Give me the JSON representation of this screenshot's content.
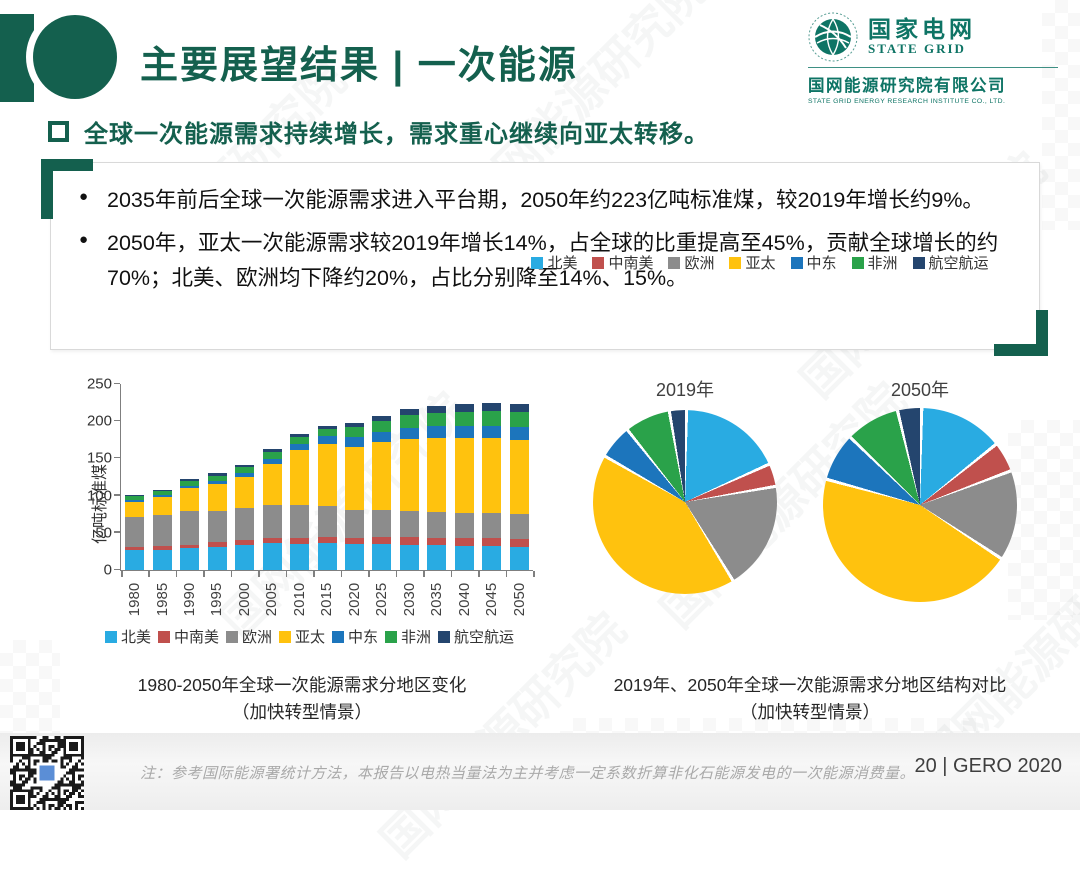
{
  "header": {
    "title": "主要展望结果 | 一次能源",
    "logo": {
      "org_cn": "国家电网",
      "org_en": "STATE GRID",
      "institute_cn": "国网能源研究院有限公司",
      "institute_en": "STATE GRID ENERGY RESEARCH INSTITUTE CO., LTD."
    }
  },
  "headline": "全球一次能源需求持续增长，需求重心继续向亚太转移。",
  "card": {
    "bullets": [
      "2035年前后全球一次能源需求进入平台期，2050年约223亿吨标准煤，较2019年增长约9%。",
      "2050年，亚太一次能源需求较2019年增长14%，占全球的比重提高至45%，贡献全球增长的约70%；北美、欧洲均下降约20%，占比分别降至14%、15%。"
    ]
  },
  "chart_data": [
    {
      "type": "bar",
      "stacked": true,
      "title": "1980-2050年全球一次能源需求分地区变化",
      "subtitle": "（加快转型情景）",
      "ylabel": "亿吨标准煤",
      "ylim": [
        0,
        250
      ],
      "yticks": [
        0,
        50,
        100,
        150,
        200,
        250
      ],
      "grid": false,
      "legend_position": "bottom",
      "categories": [
        "1980",
        "1985",
        "1990",
        "1995",
        "2000",
        "2005",
        "2010",
        "2015",
        "2020",
        "2025",
        "2030",
        "2035",
        "2040",
        "2045",
        "2050"
      ],
      "series": [
        {
          "name": "北美",
          "color": "#29ABE2",
          "values": [
            27,
            27,
            29,
            31,
            34,
            36,
            35,
            36,
            35,
            35,
            34,
            33,
            32,
            32,
            31
          ]
        },
        {
          "name": "中南美",
          "color": "#C0504D",
          "values": [
            4,
            5,
            5,
            6,
            7,
            7,
            8,
            8,
            8,
            9,
            10,
            10,
            11,
            11,
            11
          ]
        },
        {
          "name": "欧洲",
          "color": "#8C8C8C",
          "values": [
            40,
            42,
            45,
            42,
            42,
            44,
            44,
            42,
            38,
            37,
            36,
            35,
            34,
            33,
            33
          ]
        },
        {
          "name": "亚太",
          "color": "#FFC20E",
          "values": [
            21,
            24,
            31,
            37,
            42,
            56,
            74,
            84,
            85,
            91,
            96,
            99,
            100,
            101,
            100
          ]
        },
        {
          "name": "中东",
          "color": "#1C75BC",
          "values": [
            2,
            3,
            3,
            4,
            5,
            6,
            8,
            10,
            13,
            14,
            15,
            16,
            17,
            17,
            17
          ]
        },
        {
          "name": "非洲",
          "color": "#2AA24A",
          "values": [
            5,
            5,
            7,
            7,
            8,
            10,
            10,
            10,
            13,
            15,
            17,
            18,
            19,
            20,
            21
          ]
        },
        {
          "name": "航空航运",
          "color": "#24456E",
          "values": [
            2,
            2,
            3,
            3,
            3,
            4,
            4,
            4,
            5,
            6,
            8,
            9,
            10,
            10,
            10
          ]
        }
      ]
    },
    {
      "type": "pie",
      "title": "2019年",
      "group_title": "2019年、2050年全球一次能源需求分地区结构对比",
      "group_subtitle": "（加快转型情景）",
      "labels": [
        "北美",
        "中南美",
        "欧洲",
        "亚太",
        "中东",
        "非洲",
        "航空航运"
      ],
      "colors": [
        "#29ABE2",
        "#C0504D",
        "#8C8C8C",
        "#FFC20E",
        "#1C75BC",
        "#2AA24A",
        "#24456E"
      ],
      "values": [
        18,
        4,
        19,
        42,
        6,
        8,
        3
      ]
    },
    {
      "type": "pie",
      "title": "2050年",
      "labels": [
        "北美",
        "中南美",
        "欧洲",
        "亚太",
        "中东",
        "非洲",
        "航空航运"
      ],
      "colors": [
        "#29ABE2",
        "#C0504D",
        "#8C8C8C",
        "#FFC20E",
        "#1C75BC",
        "#2AA24A",
        "#24456E"
      ],
      "values": [
        14,
        5,
        15,
        45,
        8,
        9,
        4
      ]
    }
  ],
  "footer": {
    "note": "注：参考国际能源署统计方法，本报告以电热当量法为主并考虑一定系数折算非化石能源发电的一次能源消费量。",
    "page": "20 | GERO 2020"
  },
  "colors": {
    "theme_green": "#14604E",
    "logo_teal": "#0E7465"
  },
  "decor": {
    "watermark_text": "国网能源研究院"
  }
}
